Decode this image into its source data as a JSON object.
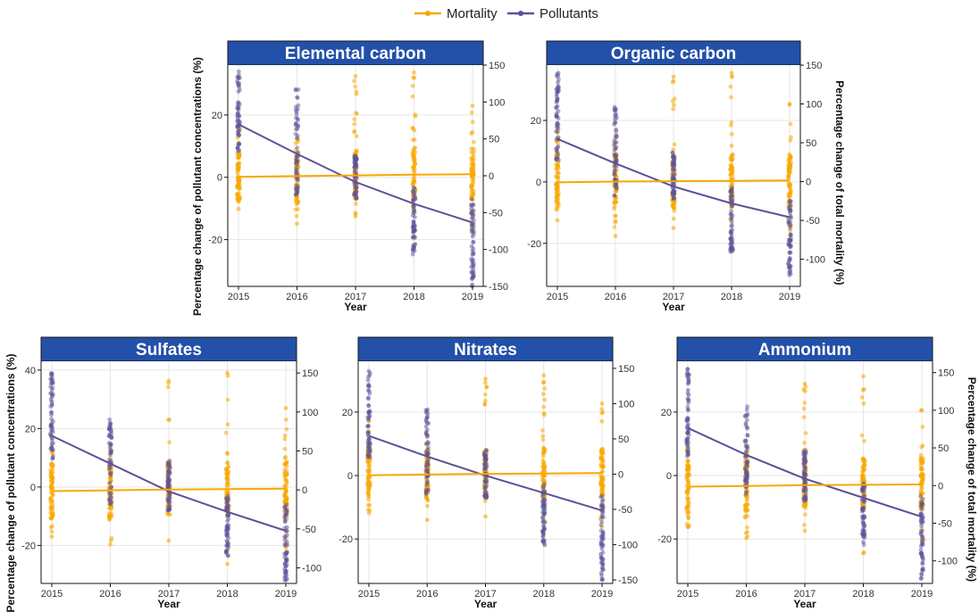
{
  "legend": {
    "mortality_label": "Mortality",
    "pollutants_label": "Pollutants"
  },
  "colors": {
    "mortality": "#F7A800",
    "pollutants": "#5B5199",
    "title_bg": "#2350A8",
    "grid": "#E6E6E6"
  },
  "shared_labels": {
    "xlabel": "Year",
    "ylabel_left": "Percentage change of pollutant concentrations (%)",
    "ylabel_right": "Percentage change of total mortality (%)"
  },
  "chart_data": [
    {
      "type": "scatter",
      "title": "Elemental carbon",
      "x": [
        "2015",
        "2016",
        "2017",
        "2018",
        "2019"
      ],
      "left_axis": {
        "ylim": [
          -35,
          36
        ],
        "ticks": [
          -20,
          0,
          20
        ]
      },
      "right_axis": {
        "ylim": [
          -150,
          150
        ],
        "ticks": [
          -150,
          -100,
          -50,
          0,
          50,
          100,
          150
        ]
      },
      "series": [
        {
          "name": "Pollutants",
          "axis": "left",
          "trend": [
            17,
            7.5,
            -1.5,
            -8.5,
            -14.5
          ],
          "spread": [
            [
              7,
              35
            ],
            [
              -8,
              29
            ],
            [
              -7,
              7
            ],
            [
              -25,
              -3
            ],
            [
              -35,
              -7
            ]
          ]
        },
        {
          "name": "Mortality",
          "axis": "right",
          "trend": [
            -1.5,
            -0.5,
            0.5,
            1.5,
            2
          ],
          "spread": [
            [
              -45,
              70
            ],
            [
              -65,
              50
            ],
            [
              -55,
              135
            ],
            [
              -85,
              140
            ],
            [
              -75,
              95
            ]
          ]
        }
      ]
    },
    {
      "type": "scatter",
      "title": "Organic carbon",
      "x": [
        "2015",
        "2016",
        "2017",
        "2018",
        "2019"
      ],
      "left_axis": {
        "ylim": [
          -34,
          38
        ],
        "ticks": [
          -20,
          0,
          20
        ]
      },
      "right_axis": {
        "ylim": [
          -135,
          150
        ],
        "ticks": [
          -100,
          -50,
          0,
          50,
          100,
          150
        ]
      },
      "series": [
        {
          "name": "Pollutants",
          "axis": "left",
          "trend": [
            14,
            6,
            -1.5,
            -7,
            -11.5
          ],
          "spread": [
            [
              6,
              36
            ],
            [
              -5,
              25
            ],
            [
              -6,
              10
            ],
            [
              -23,
              -2
            ],
            [
              -31,
              -6
            ]
          ]
        },
        {
          "name": "Mortality",
          "axis": "right",
          "trend": [
            -1,
            0,
            0.5,
            1,
            1.5
          ],
          "spread": [
            [
              -50,
              70
            ],
            [
              -70,
              60
            ],
            [
              -60,
              135
            ],
            [
              -85,
              140
            ],
            [
              -75,
              100
            ]
          ]
        }
      ]
    },
    {
      "type": "scatter",
      "title": "Sulfates",
      "x": [
        "2015",
        "2016",
        "2017",
        "2018",
        "2019"
      ],
      "left_axis": {
        "ylim": [
          -33,
          43
        ],
        "ticks": [
          -20,
          0,
          20,
          40
        ]
      },
      "right_axis": {
        "ylim": [
          -120,
          165
        ],
        "ticks": [
          -100,
          -50,
          0,
          50,
          100,
          150
        ]
      },
      "series": [
        {
          "name": "Pollutants",
          "axis": "left",
          "trend": [
            17.5,
            8,
            -1.5,
            -8.5,
            -15
          ],
          "spread": [
            [
              8,
              39
            ],
            [
              -6,
              25
            ],
            [
              -8,
              9
            ],
            [
              -24,
              -3
            ],
            [
              -32,
              -6
            ]
          ]
        },
        {
          "name": "Mortality",
          "axis": "right",
          "trend": [
            -1.5,
            -0.5,
            0.5,
            1,
            1.5
          ],
          "spread": [
            [
              -60,
              70
            ],
            [
              -70,
              55
            ],
            [
              -65,
              140
            ],
            [
              -95,
              150
            ],
            [
              -80,
              105
            ]
          ]
        }
      ]
    },
    {
      "type": "scatter",
      "title": "Nitrates",
      "x": [
        "2015",
        "2016",
        "2017",
        "2018",
        "2019"
      ],
      "left_axis": {
        "ylim": [
          -34,
          36
        ],
        "ticks": [
          -20,
          0,
          20
        ]
      },
      "right_axis": {
        "ylim": [
          -155,
          160
        ],
        "ticks": [
          -150,
          -100,
          -50,
          0,
          50,
          100,
          150
        ]
      },
      "series": [
        {
          "name": "Pollutants",
          "axis": "left",
          "trend": [
            12.5,
            6,
            0,
            -5.5,
            -11
          ],
          "spread": [
            [
              5,
              33
            ],
            [
              -6,
              21
            ],
            [
              -8,
              8
            ],
            [
              -22,
              -2
            ],
            [
              -33,
              -6
            ]
          ]
        },
        {
          "name": "Mortality",
          "axis": "right",
          "trend": [
            -1.5,
            -0.5,
            0.5,
            1,
            1.5
          ],
          "spread": [
            [
              -55,
              75
            ],
            [
              -65,
              55
            ],
            [
              -60,
              135
            ],
            [
              -85,
              140
            ],
            [
              -75,
              100
            ]
          ]
        }
      ]
    },
    {
      "type": "scatter",
      "title": "Ammonium",
      "x": [
        "2015",
        "2016",
        "2017",
        "2018",
        "2019"
      ],
      "left_axis": {
        "ylim": [
          -34,
          36
        ],
        "ticks": [
          -20,
          0,
          20
        ]
      },
      "right_axis": {
        "ylim": [
          -130,
          165
        ],
        "ticks": [
          -100,
          -50,
          0,
          50,
          100,
          150
        ]
      },
      "series": [
        {
          "name": "Pollutants",
          "axis": "left",
          "trend": [
            15,
            6.5,
            -1,
            -7,
            -13
          ],
          "spread": [
            [
              6,
              34
            ],
            [
              -6,
              22
            ],
            [
              -8,
              8
            ],
            [
              -22,
              -2
            ],
            [
              -33,
              -6
            ]
          ]
        },
        {
          "name": "Mortality",
          "axis": "right",
          "trend": [
            -1.5,
            -0.5,
            0.5,
            1,
            1.5
          ],
          "spread": [
            [
              -55,
              70
            ],
            [
              -70,
              55
            ],
            [
              -60,
              135
            ],
            [
              -90,
              145
            ],
            [
              -75,
              100
            ]
          ]
        }
      ]
    }
  ]
}
